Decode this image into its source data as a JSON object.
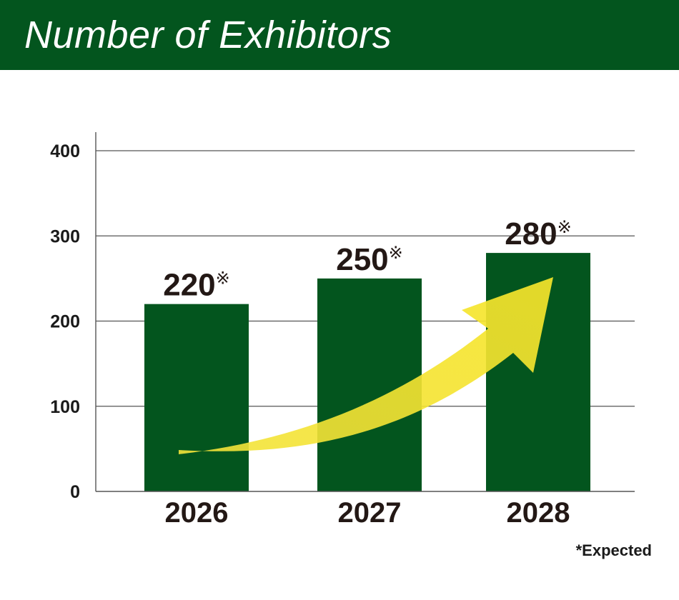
{
  "header": {
    "title": "Number of Exhibitors"
  },
  "colors": {
    "header_bg": "#03551e",
    "bar": "#03551e",
    "arrow": "#f6e52a",
    "text": "#231815",
    "grid": "#555555"
  },
  "chart_data": {
    "type": "bar",
    "title": "Number of Exhibitors",
    "xlabel": "",
    "ylabel": "",
    "categories": [
      "2026",
      "2027",
      "2028"
    ],
    "values": [
      220,
      250,
      280
    ],
    "data_labels": [
      "220",
      "250",
      "280"
    ],
    "label_mark": "※",
    "yticks": [
      "0",
      "100",
      "200",
      "300",
      "400"
    ],
    "ylim": [
      0,
      400
    ],
    "grid": true,
    "annotation": "upward trend arrow"
  },
  "footnote": "*Expected"
}
